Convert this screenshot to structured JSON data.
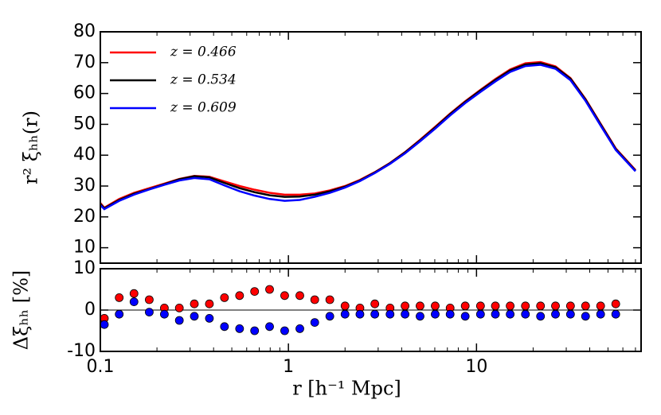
{
  "chart_data": [
    {
      "type": "line",
      "ylabel": "r² ξₕₕ(r)",
      "legend": "upper left",
      "xlog": true,
      "xlim": [
        0.1,
        75
      ],
      "ylim": [
        5,
        80
      ],
      "yticks": [
        10,
        20,
        30,
        40,
        50,
        60,
        70,
        80
      ],
      "x": [
        0.1,
        0.105,
        0.126,
        0.151,
        0.182,
        0.219,
        0.263,
        0.316,
        0.38,
        0.457,
        0.55,
        0.661,
        0.794,
        0.955,
        1.15,
        1.38,
        1.66,
        2.0,
        2.4,
        2.88,
        3.47,
        4.17,
        5.01,
        6.03,
        7.24,
        8.71,
        10.5,
        12.6,
        15.1,
        18.2,
        21.9,
        26.3,
        31.6,
        38.0,
        45.7,
        55.0,
        70
      ],
      "series": [
        {
          "name": "z = 0.466",
          "color": "#ff0000",
          "values": [
            24.5,
            23,
            25.8,
            27.8,
            29.3,
            30.8,
            32.3,
            33.3,
            33.0,
            31.5,
            30.0,
            28.8,
            27.8,
            27.2,
            27.2,
            27.6,
            28.6,
            30.0,
            32.0,
            34.5,
            37.5,
            41.0,
            45.0,
            49.2,
            53.5,
            57.5,
            61.2,
            64.7,
            67.8,
            69.8,
            70.2,
            68.8,
            65.0,
            58.2,
            50.2,
            42.2,
            35.2
          ]
        },
        {
          "name": "z = 0.534",
          "color": "#000000",
          "values": [
            24.2,
            22.8,
            25.5,
            27.5,
            29.0,
            30.6,
            32.2,
            33.2,
            32.8,
            31.0,
            29.3,
            28.0,
            27.0,
            26.5,
            26.6,
            27.2,
            28.3,
            29.8,
            31.8,
            34.4,
            37.4,
            40.9,
            44.8,
            49.0,
            53.3,
            57.3,
            61.0,
            64.4,
            67.5,
            69.4,
            69.8,
            68.5,
            64.8,
            58.0,
            50.0,
            42.0,
            35.0
          ]
        },
        {
          "name": "z = 0.609",
          "color": "#0000ff",
          "values": [
            23.8,
            22.5,
            25.2,
            27.2,
            28.9,
            30.4,
            31.8,
            32.6,
            32.2,
            30.2,
            28.3,
            26.9,
            25.8,
            25.2,
            25.5,
            26.5,
            27.8,
            29.5,
            31.6,
            34.2,
            37.2,
            40.6,
            44.5,
            48.6,
            52.9,
            56.9,
            60.5,
            63.9,
            67.0,
            68.9,
            69.3,
            68.0,
            64.3,
            57.6,
            49.6,
            41.7,
            34.8
          ]
        }
      ]
    },
    {
      "type": "scatter",
      "xlabel": "r [h⁻¹ Mpc]",
      "ylabel": "Δξₕₕ [%]",
      "xlog": true,
      "xlim": [
        0.1,
        75
      ],
      "xticks": [
        0.1,
        1,
        10
      ],
      "ylim": [
        -10,
        10
      ],
      "yticks": [
        -10,
        0,
        10
      ],
      "x": [
        0.105,
        0.126,
        0.151,
        0.182,
        0.219,
        0.263,
        0.316,
        0.38,
        0.457,
        0.55,
        0.661,
        0.794,
        0.955,
        1.15,
        1.38,
        1.66,
        2.0,
        2.4,
        2.88,
        3.47,
        4.17,
        5.01,
        6.03,
        7.24,
        8.71,
        10.5,
        12.6,
        15.1,
        18.2,
        21.9,
        26.3,
        31.6,
        38.0,
        45.7,
        55.0
      ],
      "series": [
        {
          "color": "#ff0000",
          "values": [
            -2,
            3,
            4,
            2.5,
            0.5,
            0.5,
            1.5,
            1.5,
            3,
            3.5,
            4.5,
            5,
            3.5,
            3.5,
            2.5,
            2.5,
            1,
            0.5,
            1.5,
            0.5,
            1,
            1,
            1,
            0.5,
            1,
            1,
            1,
            1,
            1,
            1,
            1,
            1,
            1,
            1,
            1.5
          ]
        },
        {
          "color": "#0000ff",
          "values": [
            -3.5,
            -1,
            2,
            -0.5,
            -1,
            -2.5,
            -1.5,
            -2,
            -4,
            -4.5,
            -5,
            -4,
            -5,
            -4.5,
            -3,
            -1.5,
            -1,
            -1,
            -1,
            -1,
            -1,
            -1.5,
            -1,
            -1,
            -1.5,
            -1,
            -1,
            -1,
            -1,
            -1.5,
            -1,
            -1,
            -1.5,
            -1,
            -1
          ]
        }
      ]
    }
  ]
}
